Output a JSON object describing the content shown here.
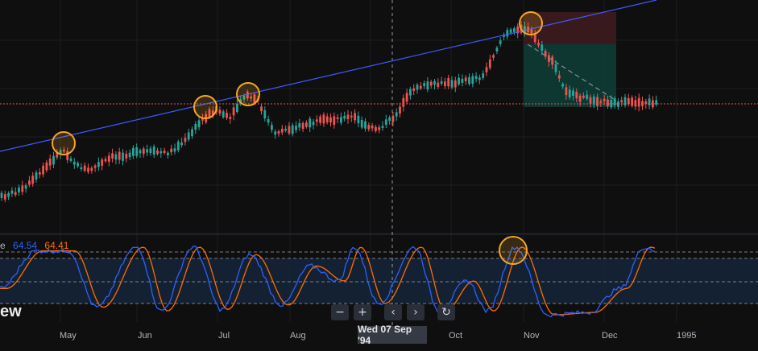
{
  "chart_data": [
    {
      "type": "candlestick",
      "panel": "price",
      "x_axis_labels": [
        "May",
        "Jun",
        "Jul",
        "Aug",
        "Oct",
        "Nov",
        "Dec",
        "1995"
      ],
      "trendline_touches": 4,
      "horizontal_level": "dotted red price level",
      "trade_box": {
        "stop_zone": "red",
        "target_zone": "green"
      },
      "cursor_date": "Wed 07 Sep '94",
      "candles_trend": "uptrend May–Oct, sharp decline in Nov, flat Dec"
    },
    {
      "type": "line",
      "panel": "oscillator",
      "legend_prefix": "e",
      "series": [
        {
          "value_label": "64.54",
          "color": "#2962ff"
        },
        {
          "value_label": "64.41",
          "color": "#ff6d00"
        }
      ],
      "ylim": [
        0,
        100
      ],
      "band": [
        20,
        80
      ]
    }
  ],
  "toolbar": {
    "zoom_out": "−",
    "zoom_in": "+",
    "scroll_left": "‹",
    "scroll_right": "›",
    "reset": "↻"
  },
  "logo_text": "ew",
  "colors": {
    "bg": "#0f0f10",
    "up": "#26a69a",
    "down": "#ef5350",
    "trend": "#3d5afe",
    "highlight": "#f5a623",
    "k_line": "#2962ff",
    "d_line": "#ff6d00"
  }
}
